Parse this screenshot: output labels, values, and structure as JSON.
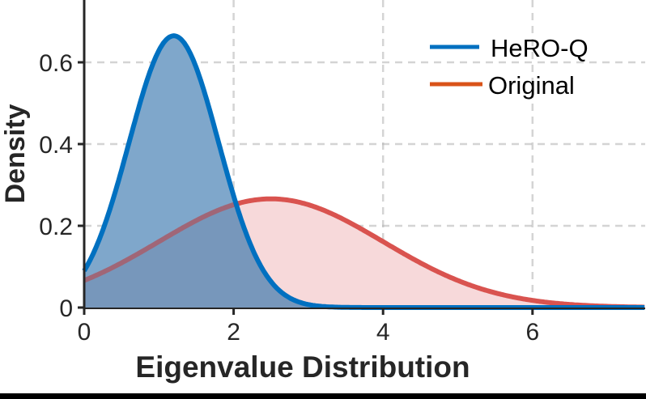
{
  "chart_data": {
    "type": "area",
    "title": "",
    "xlabel": "Eigenvalue Distribution",
    "ylabel": "Density",
    "xlim": [
      0,
      7.5
    ],
    "ylim": [
      0,
      0.75
    ],
    "xticks": [
      0,
      2,
      4,
      6
    ],
    "xtick_labels": [
      "0",
      "2",
      "4",
      "6"
    ],
    "yticks": [
      0,
      0.2,
      0.4,
      0.6
    ],
    "ytick_labels": [
      "0",
      "0.2",
      "0.4",
      "0.6"
    ],
    "grid": true,
    "legend_position": "upper right",
    "series": [
      {
        "name": "HeRO-Q",
        "color": "#0070C0",
        "fill_color": "#9DC8E8",
        "distribution": {
          "type": "gaussian",
          "mean": 1.2,
          "sd": 0.6
        },
        "x": [
          0,
          0.5,
          1.0,
          1.2,
          1.5,
          2.0,
          2.5,
          3.0,
          4.0,
          5.0,
          6.0,
          7.5
        ],
        "values": [
          0.09,
          0.34,
          0.63,
          0.665,
          0.58,
          0.28,
          0.06,
          0.007,
          0.0,
          0.0,
          0.0,
          0.0
        ]
      },
      {
        "name": "Original",
        "color": "#D9534F",
        "legend_color": "#D95319",
        "fill_color": "#F7D9DA",
        "distribution": {
          "type": "gaussian",
          "mean": 2.5,
          "sd": 1.5
        },
        "x": [
          0,
          1.0,
          2.0,
          2.5,
          3.0,
          4.0,
          5.0,
          6.0,
          7.0,
          7.5
        ],
        "values": [
          0.066,
          0.16,
          0.25,
          0.266,
          0.25,
          0.16,
          0.066,
          0.017,
          0.003,
          0.001
        ]
      }
    ]
  }
}
